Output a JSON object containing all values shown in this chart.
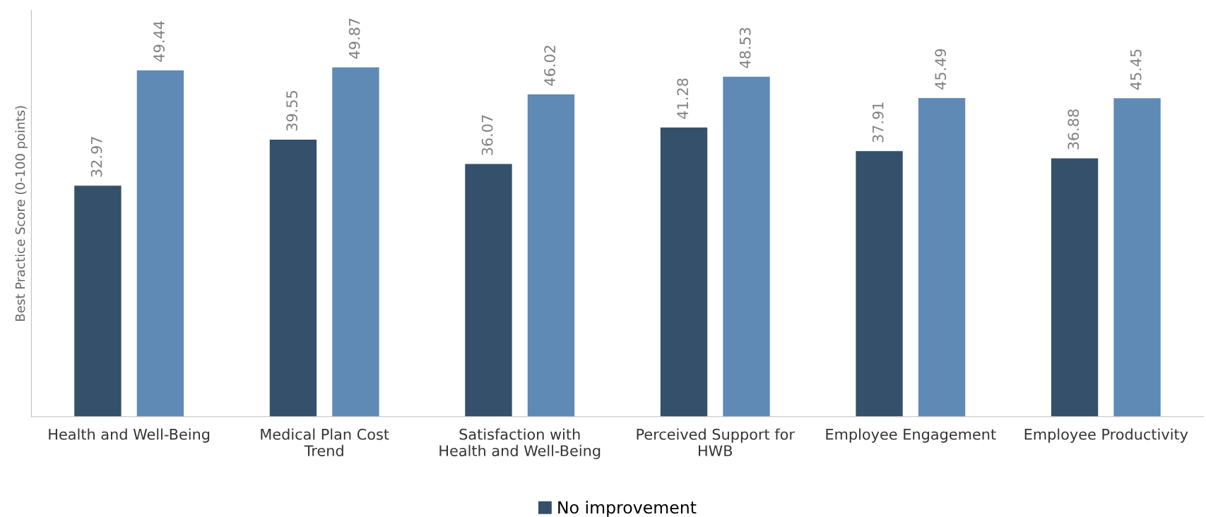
{
  "chart_data": {
    "type": "bar",
    "ylabel": "Best Practice Score (0-100 points)",
    "categories": [
      "Health and Well-Being",
      "Medical Plan Cost\nTrend",
      "Satisfaction with\nHealth and Well-Being",
      "Perceived Support for\nHWB",
      "Employee Engagement",
      "Employee Productivity"
    ],
    "series": [
      {
        "name": "No improvement",
        "color": "#34506a",
        "values": [
          32.97,
          39.55,
          36.07,
          41.28,
          37.91,
          36.88
        ]
      },
      {
        "color": "#5f8ab5",
        "values": [
          49.44,
          49.87,
          46.02,
          48.53,
          45.49,
          45.45
        ]
      }
    ],
    "ylim": [
      0,
      58
    ],
    "tick_labels": "x",
    "data_labels": true,
    "grid": false,
    "legend": "bottom"
  }
}
